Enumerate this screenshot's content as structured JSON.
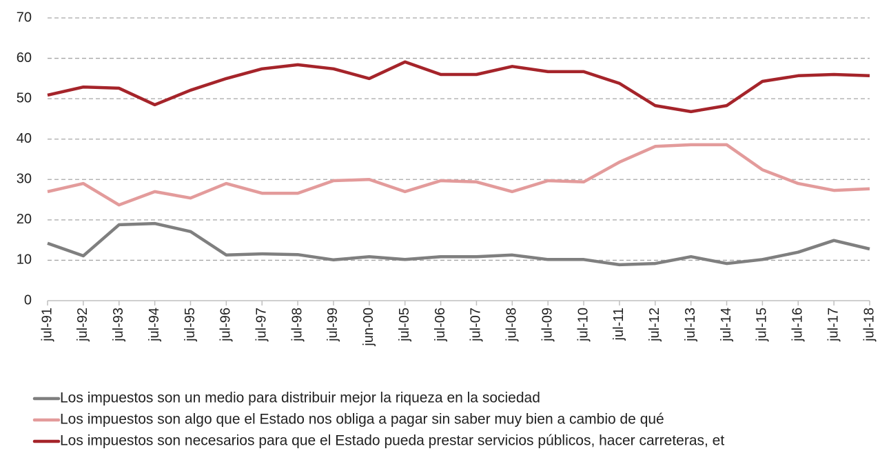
{
  "chart_data": {
    "type": "line",
    "categories": [
      "jul-91",
      "jul-92",
      "jul-93",
      "jul-94",
      "jul-95",
      "jul-96",
      "jul-97",
      "jul-98",
      "jul-99",
      "jun-00",
      "jul-05",
      "jul-06",
      "jul-07",
      "jul-08",
      "jul-09",
      "jul-10",
      "jul-11",
      "jul-12",
      "jul-13",
      "jul-14",
      "jul-15",
      "jul-16",
      "jul-17",
      "jul-18"
    ],
    "series": [
      {
        "name": "Los impuestos son un medio para distribuir mejor la riqueza en la sociedad",
        "color": "#7f7f7f",
        "values": [
          14.2,
          11.1,
          18.8,
          19.1,
          17.1,
          11.3,
          11.6,
          11.4,
          10.1,
          10.9,
          10.2,
          10.9,
          10.9,
          11.3,
          10.2,
          10.2,
          8.9,
          9.2,
          10.9,
          9.2,
          10.2,
          12.0,
          14.9,
          12.8
        ]
      },
      {
        "name": "Los impuestos son algo que el Estado nos obliga a pagar sin saber muy bien a cambio de qué",
        "color": "#e39b9b",
        "values": [
          27.0,
          29.0,
          23.7,
          27.0,
          25.4,
          29.0,
          26.6,
          26.6,
          29.7,
          30.0,
          27.0,
          29.7,
          29.4,
          27.0,
          29.7,
          29.4,
          34.3,
          38.2,
          38.6,
          38.6,
          32.4,
          29.0,
          27.3,
          27.7
        ]
      },
      {
        "name": "Los impuestos son necesarios para que el Estado pueda prestar servicios públicos, hacer carreteras, et",
        "color": "#a5242a",
        "values": [
          50.9,
          52.9,
          52.6,
          48.5,
          52.1,
          55.0,
          57.4,
          58.4,
          57.4,
          55.0,
          59.1,
          56.0,
          56.0,
          58.0,
          56.7,
          56.7,
          53.8,
          48.3,
          46.8,
          48.3,
          54.3,
          55.7,
          56.0,
          55.7
        ]
      }
    ],
    "ylim": [
      0,
      70
    ],
    "yticks": [
      0,
      10,
      20,
      30,
      40,
      50,
      60,
      70
    ],
    "grid": true
  }
}
